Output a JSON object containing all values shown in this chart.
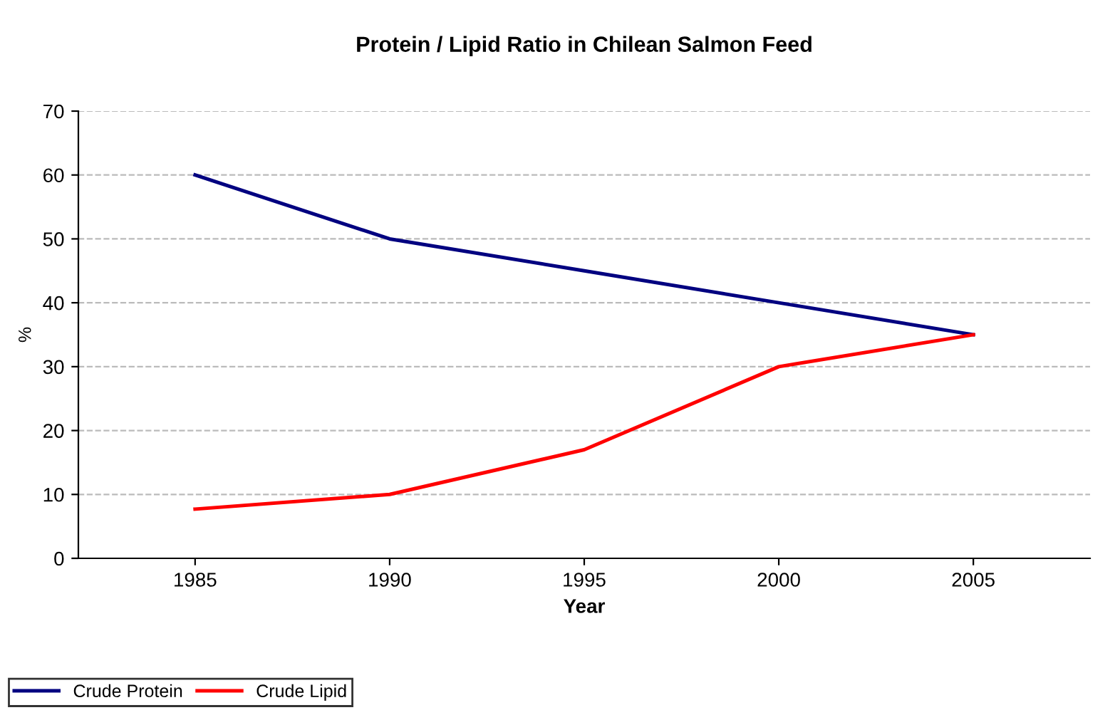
{
  "chart_data": {
    "type": "line",
    "title": "Protein / Lipid Ratio in Chilean Salmon Feed",
    "xlabel": "Year",
    "ylabel": "%",
    "categories": [
      "1985",
      "1990",
      "1995",
      "2000",
      "2005"
    ],
    "series": [
      {
        "name": "Crude Protein",
        "color": "#000080",
        "values": [
          60,
          50,
          45,
          40,
          35
        ]
      },
      {
        "name": "Crude Lipid",
        "color": "#ff0000",
        "values": [
          7.7,
          10,
          17,
          30,
          35
        ]
      }
    ],
    "ylim": [
      0,
      70
    ],
    "yticks": [
      0,
      10,
      20,
      30,
      40,
      50,
      60,
      70
    ],
    "grid": "y",
    "legend": "bottom left",
    "marker": "none",
    "line_style": "solid"
  }
}
